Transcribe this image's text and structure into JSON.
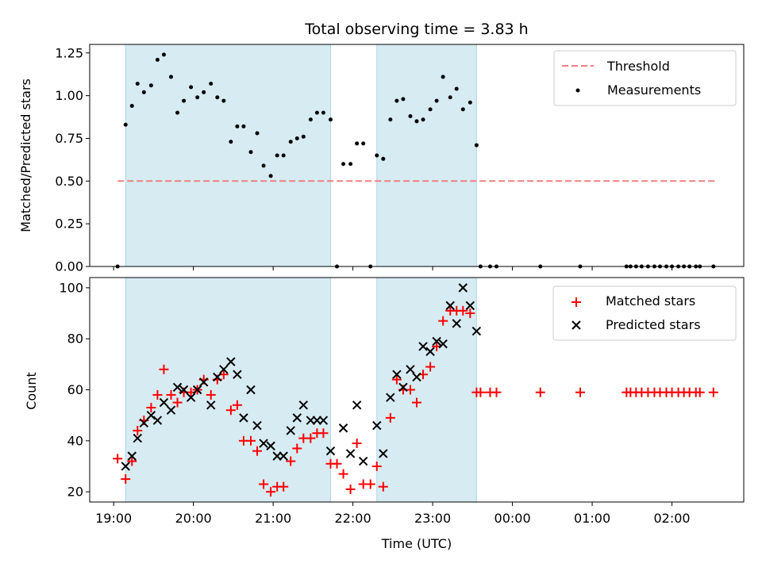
{
  "chart_data": [
    {
      "panel": "top",
      "type": "scatter",
      "title": "Total observing time = 3.83 h",
      "ylabel": "Matched/Predicted stars",
      "xlabel": "",
      "ylim": [
        0,
        1.3
      ],
      "yticks": [
        "0.00",
        "0.25",
        "0.50",
        "0.75",
        "1.00",
        "1.25"
      ],
      "ytick_values": [
        0,
        0.25,
        0.5,
        0.75,
        1.0,
        1.25
      ],
      "legend_position": "top-right",
      "legend": [
        {
          "label": "Threshold",
          "style": "dashed-line",
          "color": "#f08080"
        },
        {
          "label": "Measurements",
          "style": "dot",
          "color": "#000000"
        }
      ],
      "threshold": {
        "value": 0.5,
        "x_start": 19.05,
        "x_end": 26.55
      },
      "series": [
        {
          "name": "Measurements",
          "x": [
            19.05,
            19.15,
            19.23,
            19.3,
            19.38,
            19.47,
            19.55,
            19.63,
            19.72,
            19.8,
            19.88,
            19.97,
            20.05,
            20.13,
            20.22,
            20.3,
            20.38,
            20.47,
            20.55,
            20.63,
            20.72,
            20.8,
            20.88,
            20.97,
            21.05,
            21.13,
            21.22,
            21.3,
            21.38,
            21.47,
            21.55,
            21.63,
            21.72,
            21.8,
            21.88,
            21.97,
            22.05,
            22.13,
            22.22,
            22.3,
            22.38,
            22.47,
            22.55,
            22.63,
            22.72,
            22.8,
            22.88,
            22.97,
            23.05,
            23.13,
            23.22,
            23.3,
            23.38,
            23.47,
            23.55,
            23.6,
            23.72,
            23.8,
            24.35,
            24.85,
            25.43,
            25.48,
            25.55,
            25.62,
            25.7,
            25.78,
            25.85,
            25.93,
            26.0,
            26.08,
            26.15,
            26.22,
            26.3,
            26.35,
            26.52
          ],
          "values": [
            0.0,
            0.83,
            0.94,
            1.07,
            1.02,
            1.06,
            1.21,
            1.24,
            1.11,
            0.9,
            0.97,
            1.05,
            0.99,
            1.02,
            1.07,
            0.99,
            0.97,
            0.73,
            0.82,
            0.82,
            0.67,
            0.78,
            0.59,
            0.53,
            0.65,
            0.65,
            0.73,
            0.75,
            0.76,
            0.86,
            0.9,
            0.9,
            0.86,
            0.0,
            0.6,
            0.6,
            0.72,
            0.72,
            0.0,
            0.65,
            0.63,
            0.86,
            0.97,
            0.98,
            0.88,
            0.85,
            0.86,
            0.92,
            0.97,
            1.11,
            0.99,
            1.04,
            0.92,
            0.96,
            0.71,
            0.0,
            0.0,
            0.0,
            0.0,
            0.0,
            0.0,
            0.0,
            0.0,
            0.0,
            0.0,
            0.0,
            0.0,
            0.0,
            0.0,
            0.0,
            0.0,
            0.0,
            0.0,
            0.0,
            0.0
          ]
        }
      ]
    },
    {
      "panel": "bottom",
      "type": "scatter",
      "title": "",
      "ylabel": "Count",
      "xlabel": "Time (UTC)",
      "ylim": [
        16,
        104
      ],
      "yticks": [
        "20",
        "40",
        "60",
        "80",
        "100"
      ],
      "ytick_values": [
        20,
        40,
        60,
        80,
        100
      ],
      "legend_position": "top-right",
      "legend": [
        {
          "label": "Matched stars",
          "style": "plus",
          "color": "#ff0000"
        },
        {
          "label": "Predicted stars",
          "style": "x",
          "color": "#000000"
        }
      ],
      "series": [
        {
          "name": "Matched stars",
          "x": [
            19.05,
            19.15,
            19.23,
            19.3,
            19.38,
            19.47,
            19.55,
            19.63,
            19.72,
            19.8,
            19.88,
            19.97,
            20.05,
            20.13,
            20.22,
            20.3,
            20.38,
            20.47,
            20.55,
            20.63,
            20.72,
            20.8,
            20.88,
            20.97,
            21.05,
            21.13,
            21.22,
            21.3,
            21.38,
            21.47,
            21.55,
            21.63,
            21.72,
            21.8,
            21.88,
            21.97,
            22.05,
            22.13,
            22.22,
            22.3,
            22.38,
            22.47,
            22.55,
            22.63,
            22.72,
            22.8,
            22.88,
            22.97,
            23.05,
            23.13,
            23.22,
            23.3,
            23.38,
            23.47,
            23.55,
            23.6,
            23.72,
            23.8,
            24.35,
            24.85,
            25.43,
            25.48,
            25.55,
            25.62,
            25.7,
            25.78,
            25.85,
            25.93,
            26.0,
            26.08,
            26.15,
            26.22,
            26.3,
            26.35,
            26.52
          ],
          "values": [
            33,
            25,
            32,
            44,
            48,
            53,
            58,
            68,
            58,
            55,
            59,
            59,
            60,
            64,
            58,
            64,
            66,
            52,
            54,
            40,
            40,
            36,
            23,
            20,
            22,
            22,
            32,
            37,
            41,
            41,
            43,
            43,
            31,
            31,
            27,
            21,
            39,
            23,
            23,
            30,
            22,
            49,
            64,
            60,
            60,
            55,
            66,
            69,
            77,
            87,
            91,
            91,
            91,
            90,
            59,
            59,
            59,
            59,
            59,
            59,
            59,
            59,
            59,
            59,
            59,
            59,
            59,
            59,
            59,
            59,
            59,
            59,
            59,
            59,
            59
          ]
        },
        {
          "name": "Predicted stars",
          "x": [
            19.15,
            19.23,
            19.3,
            19.38,
            19.47,
            19.55,
            19.63,
            19.72,
            19.8,
            19.88,
            19.97,
            20.05,
            20.13,
            20.22,
            20.3,
            20.38,
            20.47,
            20.55,
            20.63,
            20.72,
            20.8,
            20.88,
            20.97,
            21.05,
            21.13,
            21.22,
            21.3,
            21.38,
            21.47,
            21.55,
            21.63,
            21.72,
            21.88,
            21.97,
            22.05,
            22.13,
            22.3,
            22.38,
            22.47,
            22.55,
            22.63,
            22.72,
            22.8,
            22.88,
            22.97,
            23.05,
            23.13,
            23.22,
            23.3,
            23.38,
            23.47,
            23.55
          ],
          "values": [
            30,
            34,
            41,
            47,
            50,
            48,
            55,
            52,
            61,
            60,
            57,
            60,
            63,
            54,
            65,
            68,
            71,
            66,
            49,
            60,
            46,
            39,
            38,
            34,
            34,
            44,
            49,
            54,
            48,
            48,
            48,
            36,
            45,
            35,
            54,
            32,
            46,
            35,
            57,
            66,
            61,
            68,
            65,
            77,
            75,
            79,
            78,
            93,
            86,
            100,
            93,
            83
          ]
        }
      ]
    }
  ],
  "x_axis": {
    "xlim": [
      18.7,
      26.9
    ],
    "ticks": [
      "19:00",
      "20:00",
      "21:00",
      "22:00",
      "23:00",
      "00:00",
      "01:00",
      "02:00"
    ],
    "tick_values": [
      19,
      20,
      21,
      22,
      23,
      24,
      25,
      26
    ]
  },
  "shaded_intervals": [
    [
      19.15,
      21.72
    ],
    [
      22.3,
      23.55
    ]
  ],
  "colors": {
    "shade": "#add8e6",
    "threshold": "#f08080",
    "matched": "#ff0000",
    "predicted": "#000000",
    "measurement": "#000000"
  }
}
